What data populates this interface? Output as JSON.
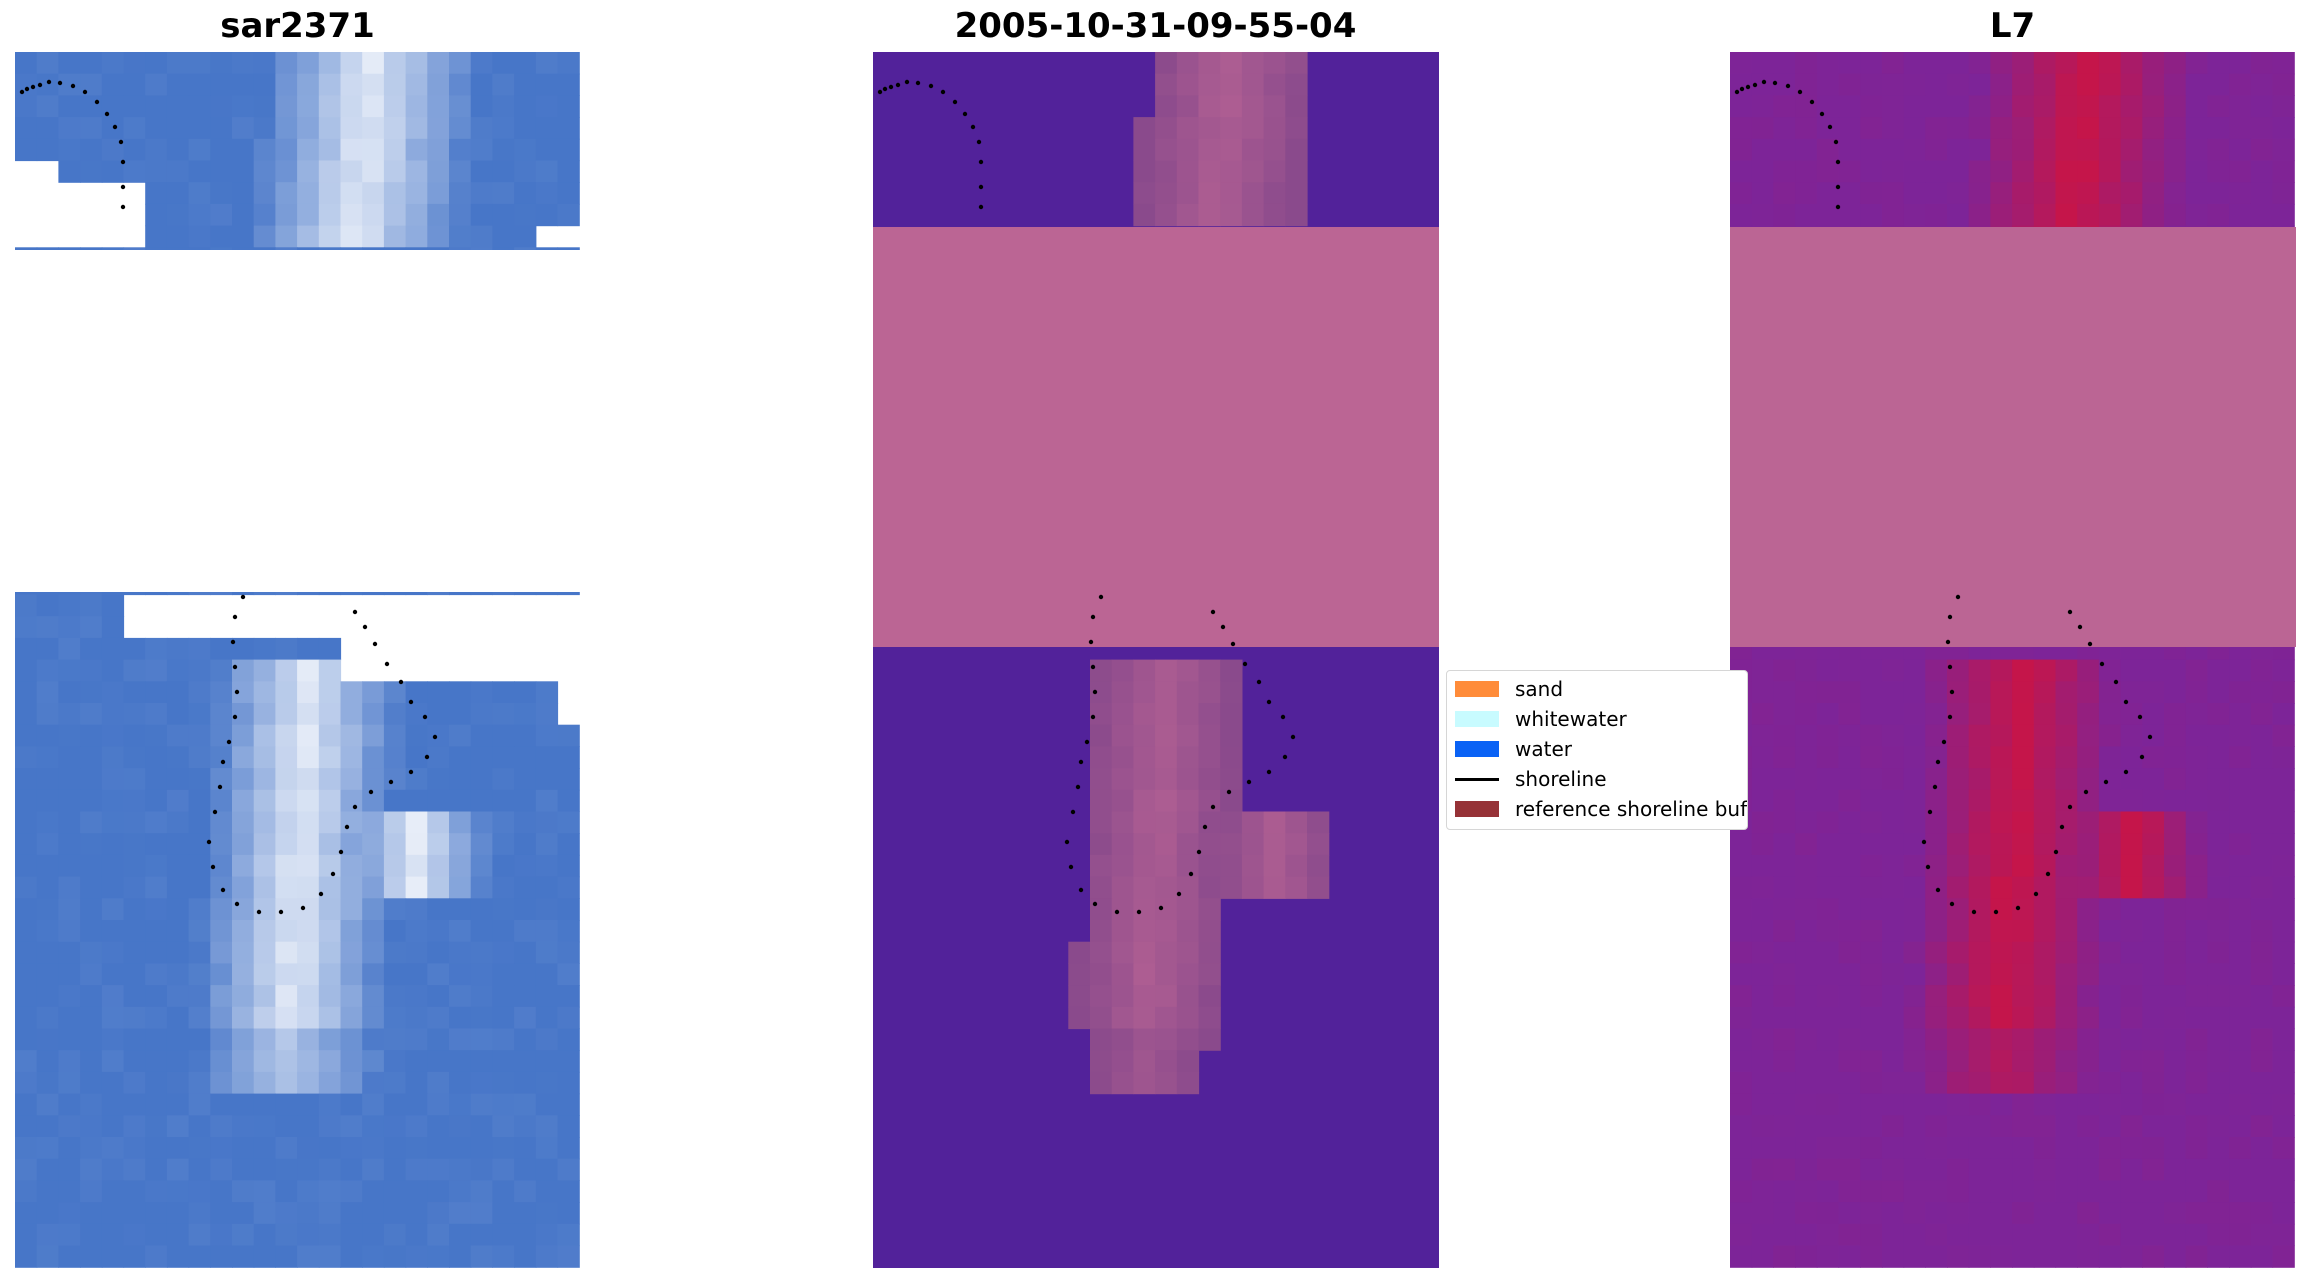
{
  "panels": [
    {
      "title": "sar2371"
    },
    {
      "title": "2005-10-31-09-55-04"
    },
    {
      "title": "L7"
    }
  ],
  "legend": {
    "items": [
      {
        "label": "sand",
        "color": "#ff8c3a",
        "kind": "patch"
      },
      {
        "label": "whitewater",
        "color": "#c8fbff",
        "kind": "patch"
      },
      {
        "label": "water",
        "color": "#0a62f5",
        "kind": "patch"
      },
      {
        "label": "shoreline",
        "color": "#000000",
        "kind": "line"
      },
      {
        "label": "reference shoreline buffer",
        "color": "#963237",
        "kind": "patch"
      }
    ]
  },
  "colors": {
    "rgb_water": "#4776c8",
    "rgb_whitewater": "#e8eef8",
    "class_water": "#52229a",
    "class_nodata": "#bb6594",
    "class_buffer": "#8a4a8c",
    "l7_water": "#7d2498",
    "l7_land": "#c5154a",
    "nodata": "#bb6594"
  }
}
